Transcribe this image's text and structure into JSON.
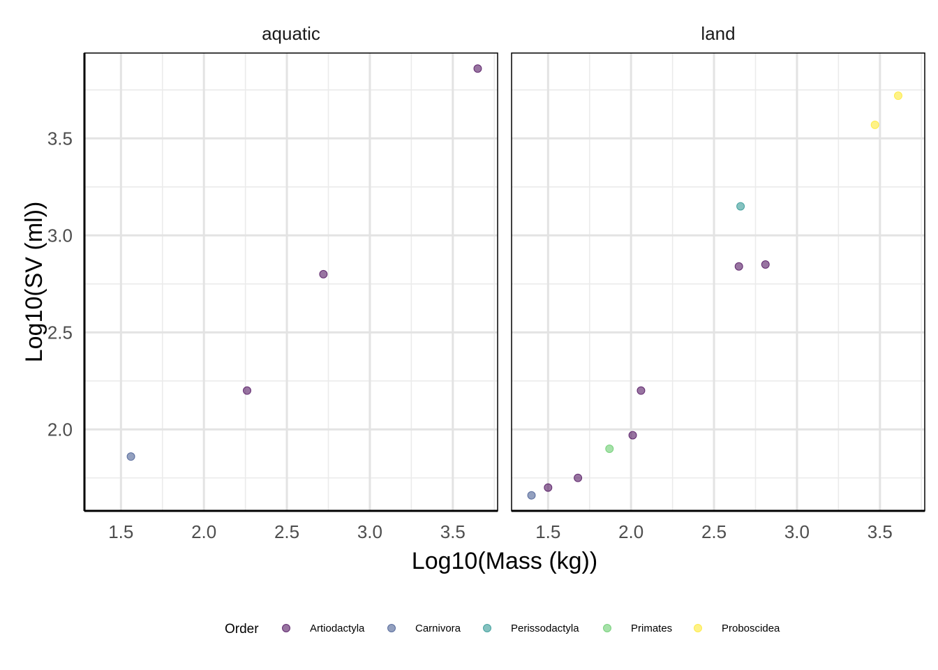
{
  "chart_data": {
    "type": "scatter",
    "xlabel": "Log10(Mass (kg))",
    "ylabel": "Log10(SV (ml))",
    "xlim": [
      1.28,
      3.77
    ],
    "ylim": [
      1.58,
      3.94
    ],
    "xticks": [
      {
        "value": 1.5,
        "label": "1.5"
      },
      {
        "value": 2.0,
        "label": "2.0"
      },
      {
        "value": 2.5,
        "label": "2.5"
      },
      {
        "value": 3.0,
        "label": "3.0"
      },
      {
        "value": 3.5,
        "label": "3.5"
      }
    ],
    "yticks": [
      {
        "value": 2.0,
        "label": "2.0"
      },
      {
        "value": 2.5,
        "label": "2.5"
      },
      {
        "value": 3.0,
        "label": "3.0"
      },
      {
        "value": 3.5,
        "label": "3.5"
      }
    ],
    "grid": true,
    "legend": {
      "title": "Order",
      "placement": "bottom",
      "entries": [
        {
          "name": "Artiodactyla",
          "color": "#440154"
        },
        {
          "name": "Carnivora",
          "color": "#3B528B"
        },
        {
          "name": "Perissodactyla",
          "color": "#21908C"
        },
        {
          "name": "Primates",
          "color": "#5DC863"
        },
        {
          "name": "Proboscidea",
          "color": "#FDE725"
        }
      ]
    },
    "panels": [
      {
        "label": "aquatic",
        "points": [
          {
            "x": 1.56,
            "y": 1.86,
            "order": "Carnivora"
          },
          {
            "x": 2.26,
            "y": 2.2,
            "order": "Artiodactyla"
          },
          {
            "x": 2.72,
            "y": 2.8,
            "order": "Artiodactyla"
          },
          {
            "x": 3.65,
            "y": 3.86,
            "order": "Artiodactyla"
          }
        ]
      },
      {
        "label": "land",
        "points": [
          {
            "x": 1.4,
            "y": 1.66,
            "order": "Carnivora"
          },
          {
            "x": 1.5,
            "y": 1.7,
            "order": "Artiodactyla"
          },
          {
            "x": 1.68,
            "y": 1.75,
            "order": "Artiodactyla"
          },
          {
            "x": 1.87,
            "y": 1.9,
            "order": "Primates"
          },
          {
            "x": 2.01,
            "y": 1.97,
            "order": "Artiodactyla"
          },
          {
            "x": 2.06,
            "y": 2.2,
            "order": "Artiodactyla"
          },
          {
            "x": 2.65,
            "y": 2.84,
            "order": "Artiodactyla"
          },
          {
            "x": 2.66,
            "y": 3.15,
            "order": "Perissodactyla"
          },
          {
            "x": 2.81,
            "y": 2.85,
            "order": "Artiodactyla"
          },
          {
            "x": 3.47,
            "y": 3.57,
            "order": "Proboscidea"
          },
          {
            "x": 3.61,
            "y": 3.72,
            "order": "Proboscidea"
          }
        ]
      }
    ]
  }
}
